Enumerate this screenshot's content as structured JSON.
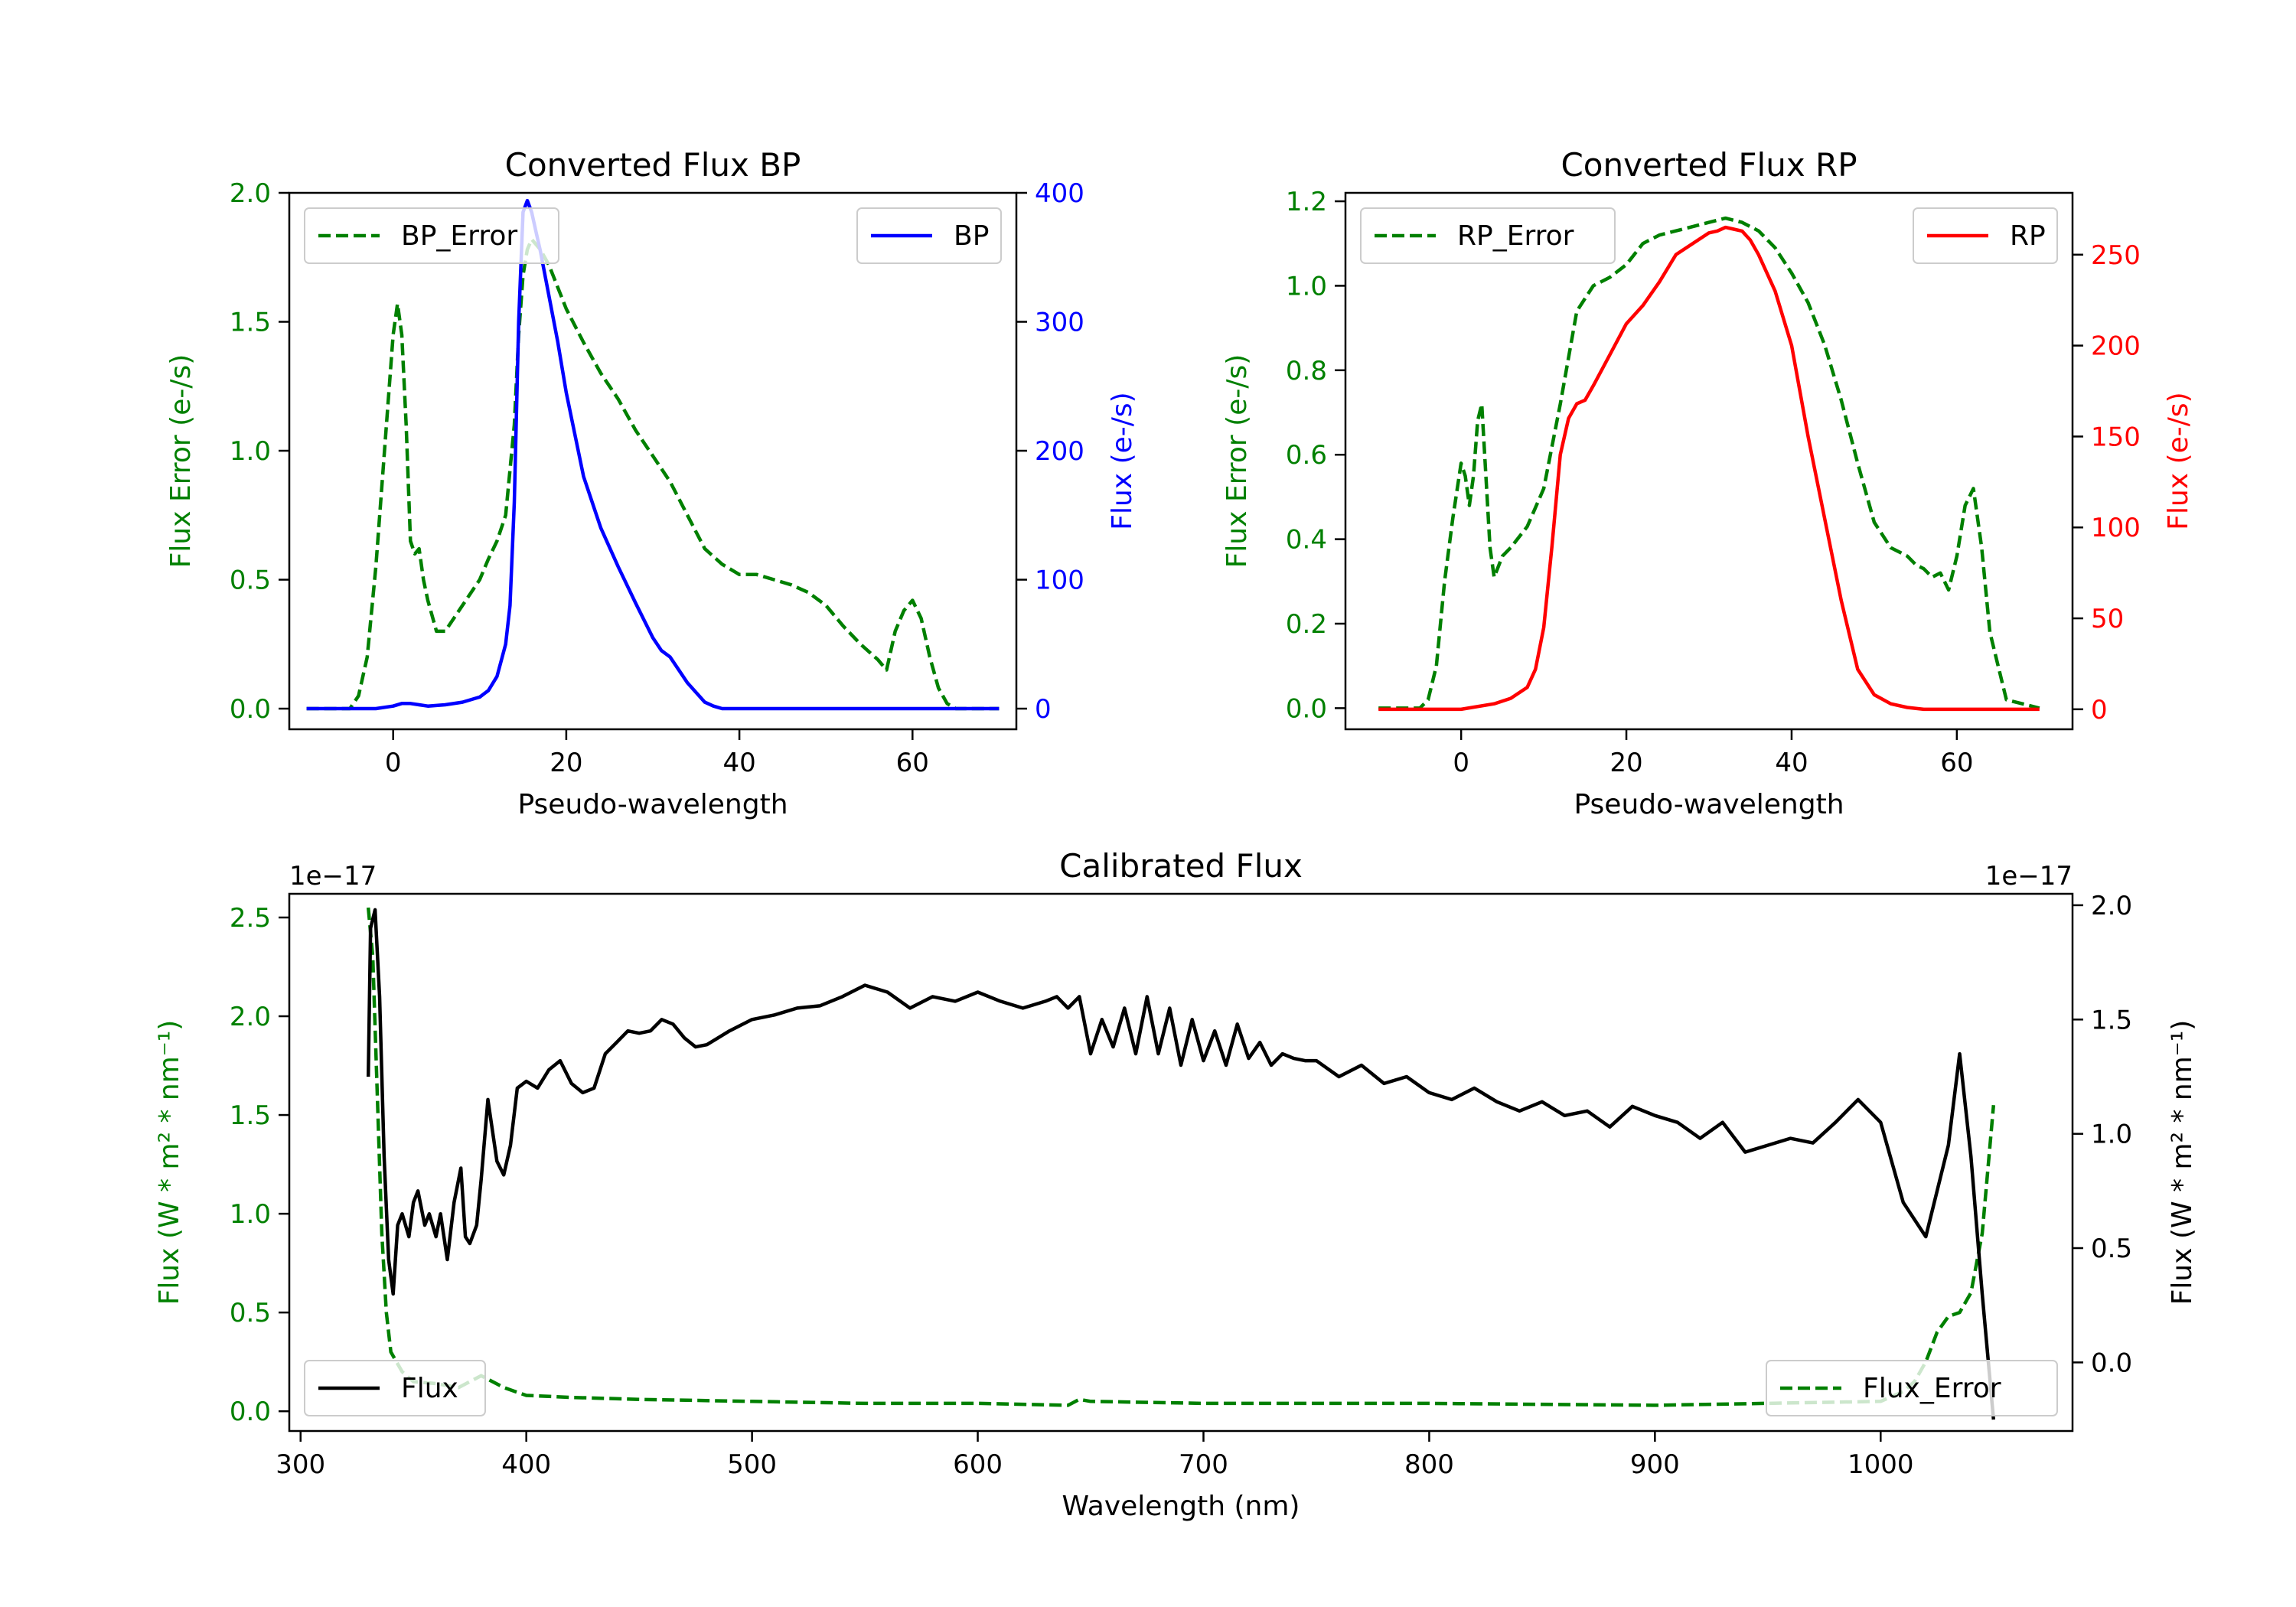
{
  "chart_data": [
    {
      "type": "line",
      "title": "Converted Flux BP",
      "xlabel": "Pseudo-wavelength",
      "ylabel_left": "Flux Error (e-/s)",
      "ylabel_right": "Flux (e-/s)",
      "xlim": [
        -12,
        72
      ],
      "ylim_left": [
        -0.08,
        2.0
      ],
      "ylim_right": [
        -16,
        400
      ],
      "xticks": [
        "0",
        "20",
        "40",
        "60"
      ],
      "yticks_left": [
        "0.0",
        "0.5",
        "1.0",
        "1.5",
        "2.0"
      ],
      "yticks_right": [
        "0",
        "100",
        "200",
        "300",
        "400"
      ],
      "left_color": "#008000",
      "right_color": "#0000ff",
      "legend_left": {
        "label": "BP_Error",
        "placement": "upper-left"
      },
      "legend_right": {
        "label": "BP",
        "placement": "upper-right"
      },
      "series": [
        {
          "name": "BP_Error",
          "axis": "left",
          "style": "dashed",
          "color": "#008000",
          "x": [
            -10,
            -5,
            -4,
            -3,
            -2,
            -1,
            0,
            0.5,
            1,
            1.5,
            2,
            2.5,
            3,
            3.5,
            4,
            5,
            6,
            7,
            8,
            9,
            10,
            11,
            12,
            13,
            14,
            14.5,
            15,
            15.5,
            16,
            17,
            18,
            20,
            22,
            24,
            26,
            28,
            30,
            32,
            34,
            36,
            38,
            40,
            42,
            44,
            46,
            48,
            50,
            52,
            54,
            56,
            57,
            58,
            59,
            60,
            61,
            62,
            63,
            64,
            65,
            66,
            68,
            70
          ],
          "y": [
            0,
            0,
            0.05,
            0.2,
            0.55,
            1.0,
            1.45,
            1.57,
            1.45,
            1.1,
            0.65,
            0.6,
            0.62,
            0.5,
            0.42,
            0.3,
            0.3,
            0.35,
            0.4,
            0.45,
            0.5,
            0.58,
            0.65,
            0.75,
            1.1,
            1.45,
            1.68,
            1.78,
            1.82,
            1.78,
            1.72,
            1.55,
            1.42,
            1.3,
            1.2,
            1.08,
            0.98,
            0.88,
            0.75,
            0.62,
            0.56,
            0.52,
            0.52,
            0.5,
            0.48,
            0.45,
            0.4,
            0.32,
            0.25,
            0.19,
            0.15,
            0.3,
            0.38,
            0.42,
            0.35,
            0.2,
            0.08,
            0.02,
            0,
            0,
            0,
            0
          ]
        },
        {
          "name": "BP",
          "axis": "right",
          "style": "solid",
          "color": "#0000ff",
          "x": [
            -10,
            -5,
            -2,
            0,
            1,
            2,
            3,
            4,
            6,
            8,
            10,
            11,
            12,
            13,
            13.5,
            14,
            14.5,
            15,
            15.5,
            16,
            16.5,
            17,
            18,
            19,
            20,
            22,
            24,
            26,
            28,
            30,
            31,
            32,
            34,
            36,
            37,
            38,
            40,
            42,
            45,
            50,
            55,
            60,
            65,
            70
          ],
          "y": [
            0,
            0,
            0,
            2,
            4,
            4,
            3,
            2,
            3,
            5,
            9,
            14,
            25,
            50,
            80,
            160,
            300,
            385,
            394,
            385,
            370,
            355,
            320,
            285,
            245,
            180,
            140,
            110,
            82,
            55,
            45,
            40,
            20,
            5,
            2,
            0,
            0,
            0,
            0,
            0,
            0,
            0,
            0,
            0
          ]
        }
      ]
    },
    {
      "type": "line",
      "title": "Converted Flux RP",
      "xlabel": "Pseudo-wavelength",
      "ylabel_left": "Flux Error (e-/s)",
      "ylabel_right": "Flux (e-/s)",
      "xlim": [
        -14,
        74
      ],
      "ylim_left": [
        -0.05,
        1.22
      ],
      "ylim_right": [
        -11,
        284
      ],
      "xticks": [
        "0",
        "20",
        "40",
        "60"
      ],
      "yticks_left": [
        "0.0",
        "0.2",
        "0.4",
        "0.6",
        "0.8",
        "1.0",
        "1.2"
      ],
      "yticks_right": [
        "0",
        "50",
        "100",
        "150",
        "200",
        "250"
      ],
      "left_color": "#008000",
      "right_color": "#ff0000",
      "legend_left": {
        "label": "RP_Error",
        "placement": "upper-left"
      },
      "legend_right": {
        "label": "RP",
        "placement": "upper-right"
      },
      "series": [
        {
          "name": "RP_Error",
          "axis": "left",
          "style": "dashed",
          "color": "#008000",
          "x": [
            -10,
            -5,
            -4,
            -3,
            -2,
            -1,
            0,
            0.5,
            1,
            1.5,
            2,
            2.5,
            3,
            3.5,
            4,
            5,
            6,
            8,
            10,
            12,
            14,
            16,
            18,
            20,
            22,
            24,
            26,
            28,
            30,
            32,
            34,
            36,
            38,
            40,
            42,
            44,
            46,
            48,
            50,
            52,
            54,
            55,
            56,
            57,
            58,
            59,
            60,
            61,
            62,
            63,
            64,
            66,
            70
          ],
          "y": [
            0,
            0,
            0.02,
            0.1,
            0.3,
            0.45,
            0.58,
            0.55,
            0.48,
            0.55,
            0.68,
            0.72,
            0.55,
            0.38,
            0.31,
            0.36,
            0.38,
            0.43,
            0.52,
            0.72,
            0.94,
            1.0,
            1.02,
            1.05,
            1.1,
            1.12,
            1.13,
            1.14,
            1.15,
            1.16,
            1.15,
            1.13,
            1.09,
            1.03,
            0.96,
            0.86,
            0.73,
            0.58,
            0.44,
            0.38,
            0.36,
            0.34,
            0.33,
            0.31,
            0.32,
            0.28,
            0.36,
            0.48,
            0.52,
            0.38,
            0.18,
            0.02,
            0
          ]
        },
        {
          "name": "RP",
          "axis": "right",
          "style": "solid",
          "color": "#ff0000",
          "x": [
            -10,
            -5,
            0,
            4,
            6,
            8,
            9,
            10,
            11,
            12,
            13,
            14,
            15,
            16,
            18,
            20,
            22,
            24,
            26,
            28,
            29,
            30,
            31,
            32,
            33,
            34,
            35,
            36,
            38,
            40,
            42,
            44,
            46,
            48,
            50,
            52,
            54,
            56,
            58,
            60,
            65,
            70
          ],
          "y": [
            0,
            0,
            0,
            3,
            6,
            12,
            22,
            45,
            90,
            140,
            160,
            168,
            170,
            178,
            195,
            212,
            222,
            235,
            250,
            256,
            259,
            262,
            263,
            265,
            264,
            263,
            258,
            250,
            230,
            200,
            150,
            105,
            60,
            22,
            8,
            3,
            1,
            0,
            0,
            0,
            0,
            0
          ]
        }
      ]
    },
    {
      "type": "line",
      "title": "Calibrated Flux",
      "xlabel": "Wavelength (nm)",
      "ylabel_left": "Flux (W * m² * nm⁻¹)",
      "ylabel_right": "Flux (W * m² * nm⁻¹)",
      "offset_left": "1e−17",
      "offset_right": "1e−17",
      "xlim": [
        295,
        1085
      ],
      "ylim_left": [
        -0.1,
        2.62
      ],
      "ylim_right": [
        -0.3,
        2.05
      ],
      "xticks": [
        "300",
        "400",
        "500",
        "600",
        "700",
        "800",
        "900",
        "1000"
      ],
      "yticks_left": [
        "0.0",
        "0.5",
        "1.0",
        "1.5",
        "2.0",
        "2.5"
      ],
      "yticks_right": [
        "0.0",
        "0.5",
        "1.0",
        "1.5",
        "2.0"
      ],
      "left_color": "#008000",
      "right_color": "#000000",
      "legend_left": {
        "label": "Flux",
        "placement": "lower-left"
      },
      "legend_right": {
        "label": "Flux_Error",
        "placement": "lower-right"
      },
      "series": [
        {
          "name": "Flux_Error",
          "axis": "left",
          "style": "dashed",
          "color": "#008000",
          "x": [
            330,
            332,
            334,
            336,
            338,
            340,
            345,
            350,
            360,
            370,
            380,
            390,
            400,
            420,
            450,
            500,
            550,
            600,
            640,
            645,
            650,
            700,
            800,
            900,
            1000,
            1010,
            1015,
            1020,
            1025,
            1030,
            1035,
            1040,
            1045,
            1050
          ],
          "y": [
            2.55,
            2.3,
            1.6,
            0.9,
            0.5,
            0.3,
            0.2,
            0.15,
            0.14,
            0.12,
            0.18,
            0.12,
            0.08,
            0.07,
            0.06,
            0.05,
            0.04,
            0.04,
            0.03,
            0.06,
            0.05,
            0.04,
            0.04,
            0.03,
            0.05,
            0.1,
            0.15,
            0.25,
            0.4,
            0.48,
            0.5,
            0.6,
            0.9,
            1.55
          ]
        },
        {
          "name": "Flux",
          "axis": "right",
          "style": "solid",
          "color": "#000000",
          "x": [
            330,
            331,
            333,
            335,
            337,
            339,
            341,
            343,
            345,
            348,
            350,
            352,
            355,
            357,
            360,
            362,
            365,
            368,
            371,
            373,
            375,
            378,
            380,
            383,
            387,
            390,
            393,
            396,
            400,
            405,
            410,
            415,
            420,
            425,
            430,
            435,
            440,
            445,
            450,
            455,
            460,
            465,
            470,
            475,
            480,
            485,
            490,
            500,
            510,
            520,
            530,
            540,
            550,
            560,
            570,
            580,
            590,
            600,
            610,
            620,
            630,
            635,
            640,
            645,
            650,
            655,
            660,
            665,
            670,
            675,
            680,
            685,
            690,
            695,
            700,
            705,
            710,
            715,
            720,
            725,
            730,
            735,
            740,
            745,
            750,
            760,
            770,
            780,
            790,
            800,
            810,
            820,
            830,
            840,
            850,
            860,
            870,
            880,
            890,
            900,
            910,
            920,
            930,
            940,
            950,
            960,
            970,
            980,
            990,
            1000,
            1010,
            1020,
            1030,
            1035,
            1040,
            1045,
            1050
          ],
          "y": [
            1.25,
            1.9,
            1.98,
            1.6,
            0.9,
            0.45,
            0.3,
            0.6,
            0.65,
            0.55,
            0.7,
            0.75,
            0.6,
            0.65,
            0.55,
            0.65,
            0.45,
            0.7,
            0.85,
            0.55,
            0.52,
            0.6,
            0.8,
            1.15,
            0.88,
            0.82,
            0.95,
            1.2,
            1.23,
            1.2,
            1.28,
            1.32,
            1.22,
            1.18,
            1.2,
            1.35,
            1.4,
            1.45,
            1.44,
            1.45,
            1.5,
            1.48,
            1.42,
            1.38,
            1.39,
            1.42,
            1.45,
            1.5,
            1.52,
            1.55,
            1.56,
            1.6,
            1.65,
            1.62,
            1.55,
            1.6,
            1.58,
            1.62,
            1.58,
            1.55,
            1.58,
            1.6,
            1.55,
            1.6,
            1.35,
            1.5,
            1.38,
            1.55,
            1.35,
            1.6,
            1.35,
            1.55,
            1.3,
            1.5,
            1.32,
            1.45,
            1.3,
            1.48,
            1.33,
            1.4,
            1.3,
            1.35,
            1.33,
            1.32,
            1.32,
            1.25,
            1.3,
            1.22,
            1.25,
            1.18,
            1.15,
            1.2,
            1.14,
            1.1,
            1.14,
            1.08,
            1.1,
            1.03,
            1.12,
            1.08,
            1.05,
            0.98,
            1.05,
            0.92,
            0.95,
            0.98,
            0.96,
            1.05,
            1.15,
            1.05,
            0.7,
            0.55,
            0.95,
            1.35,
            0.9,
            0.3,
            -0.25
          ]
        }
      ]
    }
  ]
}
